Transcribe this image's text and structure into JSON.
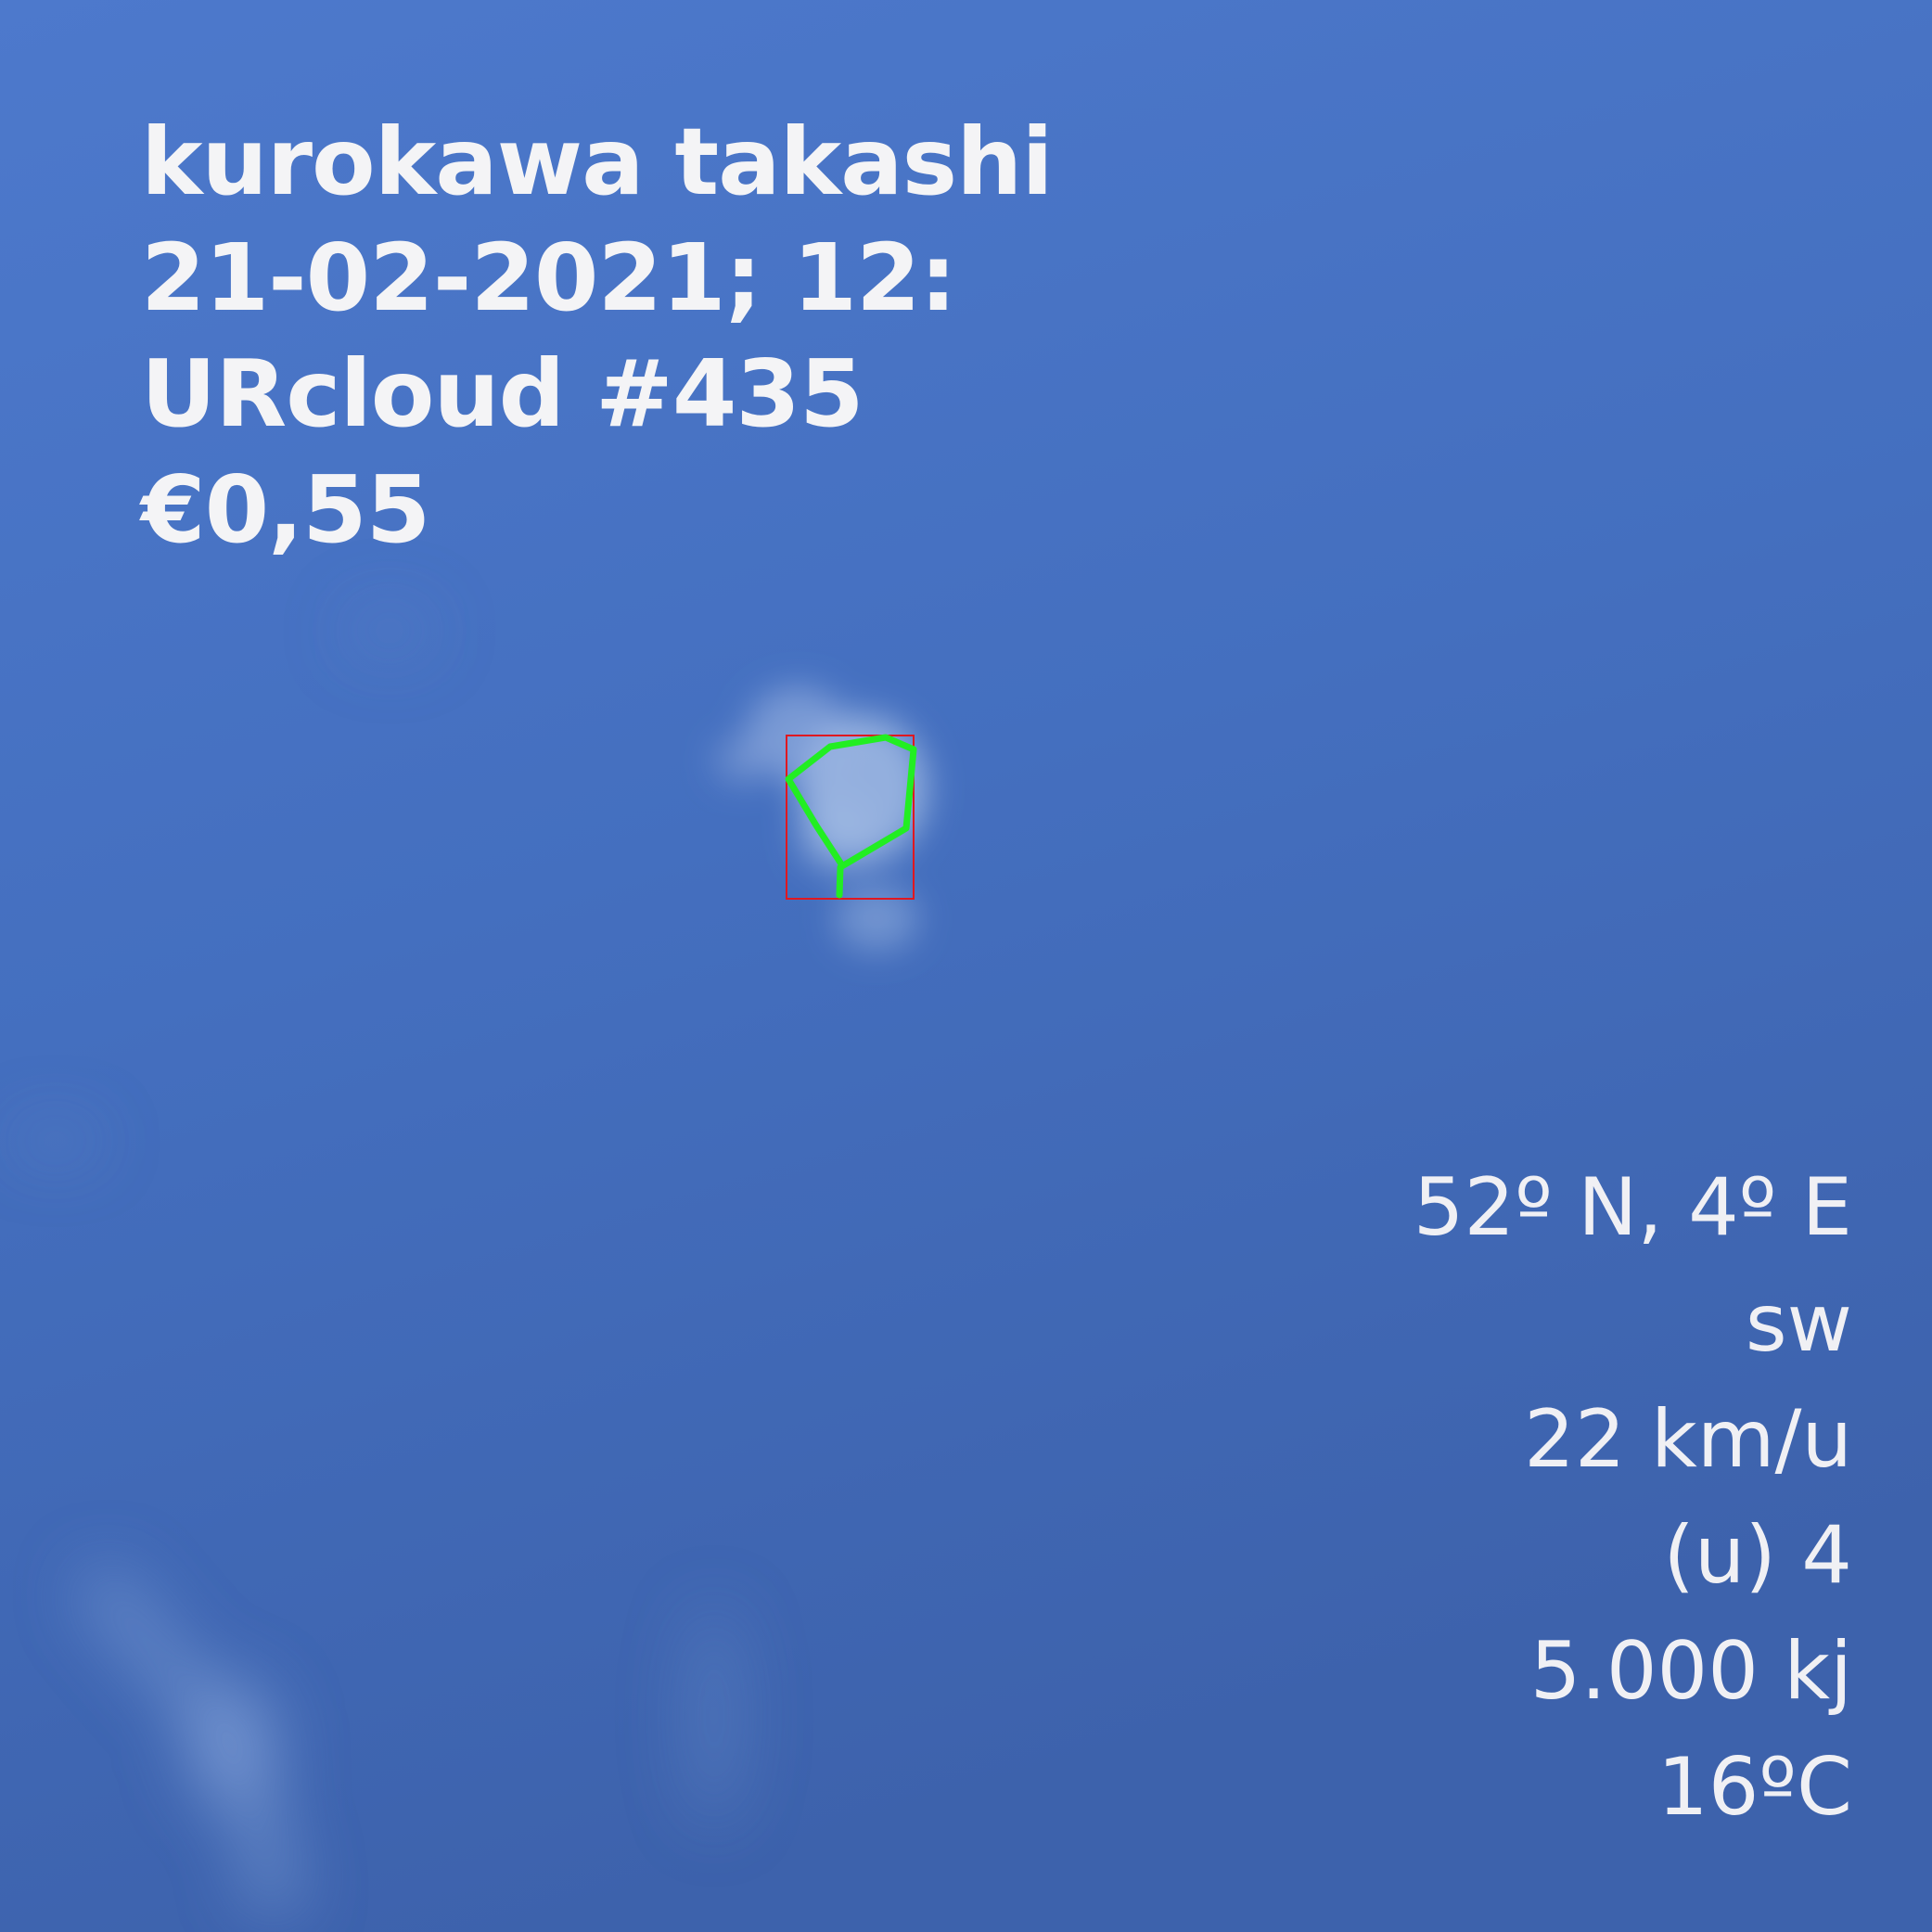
{
  "photo": {
    "subject": "sky-with-cloud",
    "sky_color_top": "#4d79cc",
    "sky_color_bottom": "#3d62ac",
    "cloud_color": "#a8bfe6",
    "outline_color": "#22ee22",
    "box_color": "#e01820"
  },
  "caption_left": {
    "name": "kurokawa takashi",
    "datetime": "21-02-2021; 12:",
    "cloud_id": "URcloud #435",
    "price": "€0,55"
  },
  "caption_right": {
    "coordinates": "52º N, 4º E",
    "wind_direction": "sw",
    "wind_speed": "22 km/u",
    "hours": "(u) 4",
    "energy": "5.000 kj",
    "temperature": "16ºC"
  }
}
